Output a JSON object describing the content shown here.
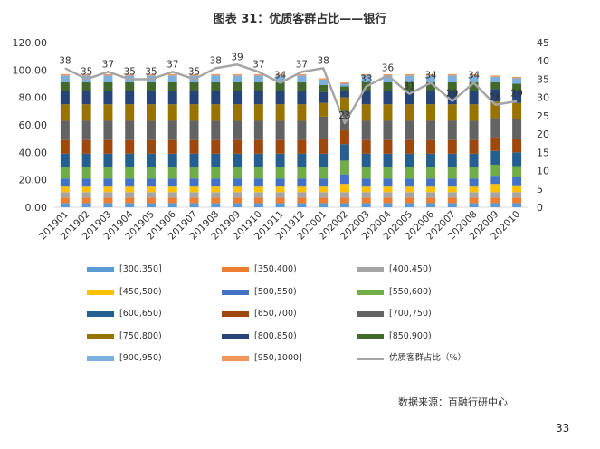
{
  "title": "图表 31：优质客群占比——银行",
  "source": "数据来源：百融行研中心",
  "page_number": "33",
  "chart_data": {
    "type": "bar",
    "stacked": true,
    "title": "图表 31：优质客群占比——银行",
    "categories": [
      "201901",
      "201902",
      "201903",
      "201904",
      "201905",
      "201906",
      "201907",
      "201908",
      "201909",
      "201910",
      "201911",
      "201912",
      "202001",
      "202002",
      "202003",
      "202004",
      "202005",
      "202006",
      "202007",
      "202008",
      "202009",
      "202010"
    ],
    "y_left": {
      "ylim": [
        0,
        120
      ],
      "ticks": [
        "0.00",
        "20.00",
        "40.00",
        "60.00",
        "80.00",
        "100.00",
        "120.00"
      ]
    },
    "y_right": {
      "ylim": [
        0,
        45
      ],
      "ticks": [
        "0",
        "5",
        "10",
        "15",
        "20",
        "25",
        "30",
        "35",
        "40",
        "45"
      ]
    },
    "series": [
      {
        "name": "[300,350]",
        "color": "#5b9bd5",
        "values": [
          3,
          3,
          3,
          3,
          3,
          3,
          3,
          3,
          3,
          3,
          3,
          3,
          3,
          3,
          3,
          3,
          3,
          3,
          3,
          3,
          3,
          3
        ]
      },
      {
        "name": "[350,400)",
        "color": "#ed7d31",
        "values": [
          4,
          4,
          4,
          4,
          4,
          4,
          4,
          4,
          4,
          4,
          4,
          4,
          4,
          4,
          4,
          4,
          4,
          4,
          4,
          4,
          4,
          4
        ]
      },
      {
        "name": "[400,450)",
        "color": "#a5a5a5",
        "values": [
          4,
          4,
          4,
          4,
          4,
          4,
          4,
          4,
          4,
          4,
          4,
          4,
          4,
          4,
          4,
          4,
          4,
          4,
          4,
          4,
          4,
          4
        ]
      },
      {
        "name": "[450,500)",
        "color": "#ffc000",
        "values": [
          4,
          4,
          4,
          4,
          4,
          4,
          4,
          4,
          4,
          4,
          4,
          4,
          4,
          6,
          4,
          4,
          4,
          4,
          4,
          4,
          6,
          5
        ]
      },
      {
        "name": "[500,550)",
        "color": "#4472c4",
        "values": [
          6,
          6,
          6,
          6,
          6,
          6,
          6,
          6,
          6,
          6,
          6,
          6,
          6,
          7,
          6,
          6,
          6,
          6,
          6,
          6,
          6,
          6
        ]
      },
      {
        "name": "[550,600)",
        "color": "#70ad47",
        "values": [
          8,
          8,
          8,
          8,
          8,
          8,
          8,
          8,
          8,
          8,
          8,
          8,
          8,
          10,
          8,
          8,
          8,
          8,
          8,
          8,
          8,
          8
        ]
      },
      {
        "name": "[600,650)",
        "color": "#255e91",
        "values": [
          10,
          10,
          10,
          10,
          10,
          10,
          10,
          10,
          10,
          10,
          10,
          10,
          10,
          12,
          10,
          10,
          10,
          10,
          10,
          10,
          10,
          10
        ]
      },
      {
        "name": "[650,700)",
        "color": "#9e480e",
        "values": [
          10,
          10,
          10,
          10,
          10,
          10,
          10,
          10,
          10,
          10,
          10,
          10,
          11,
          10,
          10,
          10,
          10,
          10,
          10,
          10,
          10,
          10
        ]
      },
      {
        "name": "[700,750)",
        "color": "#636363",
        "values": [
          14,
          14,
          14,
          14,
          14,
          14,
          14,
          14,
          14,
          14,
          14,
          14,
          16,
          15,
          14,
          14,
          14,
          14,
          14,
          14,
          14,
          14
        ]
      },
      {
        "name": "[750,800)",
        "color": "#997300",
        "values": [
          12,
          12,
          12,
          12,
          12,
          12,
          12,
          12,
          12,
          12,
          12,
          12,
          10,
          9,
          12,
          12,
          12,
          12,
          12,
          12,
          12,
          12
        ]
      },
      {
        "name": "[800,850)",
        "color": "#264478",
        "values": [
          10,
          10,
          10,
          10,
          10,
          10,
          10,
          10,
          10,
          10,
          10,
          10,
          8,
          5,
          10,
          10,
          10,
          10,
          10,
          10,
          9,
          9
        ]
      },
      {
        "name": "[850,900)",
        "color": "#43682b",
        "values": [
          6,
          6,
          6,
          6,
          6,
          6,
          6,
          6,
          6,
          6,
          6,
          6,
          5,
          3,
          6,
          6,
          6,
          6,
          6,
          6,
          5,
          5
        ]
      },
      {
        "name": "[900,950)",
        "color": "#7cafdd",
        "values": [
          5,
          5,
          5,
          5,
          5,
          5,
          5,
          5,
          5,
          5,
          5,
          5,
          4,
          2,
          5,
          5,
          5,
          5,
          5,
          5,
          4,
          4
        ]
      },
      {
        "name": "[950,1000]",
        "color": "#f1975a",
        "values": [
          1,
          1,
          1,
          1,
          1,
          1,
          1,
          1,
          1,
          1,
          1,
          1,
          1,
          1,
          1,
          1,
          1,
          1,
          1,
          1,
          1,
          1
        ]
      }
    ],
    "line": {
      "name": "优质客群占比（%）",
      "color": "#a5a5a5",
      "axis": "right",
      "values": [
        38,
        35,
        37,
        35,
        35,
        37,
        35,
        38,
        39,
        37,
        34,
        37,
        38,
        23,
        33,
        36,
        31,
        34,
        29,
        34,
        28,
        29
      ],
      "labels": [
        "38",
        "35",
        "37",
        "35",
        "35",
        "37",
        "35",
        "38",
        "39",
        "37",
        "34",
        "37",
        "38",
        "23",
        "33",
        "36",
        "31",
        "34",
        "29",
        "34",
        "28",
        "29"
      ]
    },
    "legend_columns": 3,
    "legend_position": "bottom",
    "grid": false
  }
}
